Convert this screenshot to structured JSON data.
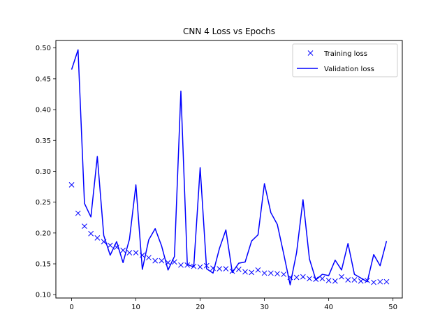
{
  "chart_data": {
    "type": "line",
    "title": "CNN 4 Loss vs Epochs",
    "xlabel": "",
    "ylabel": "",
    "xlim": [
      -2.45,
      51.45
    ],
    "ylim": [
      0.0946,
      0.5121
    ],
    "xticks": [
      0,
      10,
      20,
      30,
      40,
      50
    ],
    "yticks": [
      0.1,
      0.15,
      0.2,
      0.25,
      0.3,
      0.35,
      0.4,
      0.45,
      0.5
    ],
    "ytick_labels": [
      "0.10",
      "0.15",
      "0.20",
      "0.25",
      "0.30",
      "0.35",
      "0.40",
      "0.45",
      "0.50"
    ],
    "grid": false,
    "legend_position": "top-right",
    "x": [
      0,
      1,
      2,
      3,
      4,
      5,
      6,
      7,
      8,
      9,
      10,
      11,
      12,
      13,
      14,
      15,
      16,
      17,
      18,
      19,
      20,
      21,
      22,
      23,
      24,
      25,
      26,
      27,
      28,
      29,
      30,
      31,
      32,
      33,
      34,
      35,
      36,
      37,
      38,
      39,
      40,
      41,
      42,
      43,
      44,
      45,
      46,
      47,
      48,
      49
    ],
    "series": [
      {
        "name": "Training loss",
        "style": "markers-x",
        "color": "#0000ff",
        "values": [
          0.278,
          0.232,
          0.211,
          0.199,
          0.192,
          0.186,
          0.18,
          0.177,
          0.172,
          0.168,
          0.168,
          0.164,
          0.16,
          0.155,
          0.155,
          0.152,
          0.153,
          0.148,
          0.148,
          0.146,
          0.145,
          0.147,
          0.143,
          0.142,
          0.142,
          0.138,
          0.141,
          0.137,
          0.136,
          0.14,
          0.135,
          0.135,
          0.134,
          0.133,
          0.128,
          0.128,
          0.129,
          0.126,
          0.125,
          0.126,
          0.123,
          0.122,
          0.129,
          0.124,
          0.124,
          0.122,
          0.123,
          0.12,
          0.121,
          0.121
        ]
      },
      {
        "name": "Validation loss",
        "style": "line",
        "color": "#0000ff",
        "values": [
          0.465,
          0.497,
          0.248,
          0.226,
          0.324,
          0.196,
          0.164,
          0.186,
          0.152,
          0.19,
          0.278,
          0.141,
          0.189,
          0.207,
          0.179,
          0.14,
          0.162,
          0.43,
          0.149,
          0.145,
          0.306,
          0.142,
          0.135,
          0.175,
          0.205,
          0.136,
          0.151,
          0.153,
          0.187,
          0.197,
          0.28,
          0.233,
          0.214,
          0.166,
          0.116,
          0.168,
          0.254,
          0.158,
          0.124,
          0.133,
          0.131,
          0.156,
          0.14,
          0.183,
          0.133,
          0.127,
          0.121,
          0.165,
          0.147,
          0.187
        ]
      }
    ]
  }
}
